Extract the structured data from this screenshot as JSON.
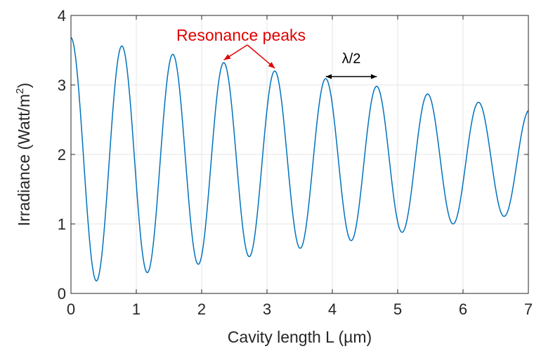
{
  "chart_data": {
    "type": "line",
    "title": "",
    "xlabel": "Cavity length L (µm)",
    "ylabel_main": "Irradiance (Watt/m",
    "ylabel_sup": "2",
    "ylabel_close": ")",
    "xlim": [
      0,
      7
    ],
    "ylim": [
      0,
      4
    ],
    "xticks": [
      0,
      1,
      2,
      3,
      4,
      5,
      6,
      7
    ],
    "yticks": [
      0,
      1,
      2,
      3,
      4
    ],
    "grid": true,
    "series": [
      {
        "color": "#0072bd",
        "model": {
          "period": 0.78,
          "peak_x": [
            0,
            0.78,
            1.56,
            2.34,
            3.12,
            3.9,
            4.68,
            5.46,
            6.24,
            7.02
          ],
          "peak_y": [
            3.68,
            3.56,
            3.44,
            3.32,
            3.2,
            3.09,
            2.98,
            2.87,
            2.75,
            2.64
          ],
          "trough_x": [
            0.39,
            1.17,
            1.95,
            2.73,
            3.51,
            4.29,
            5.07,
            5.85,
            6.63
          ],
          "trough_y": [
            0.18,
            0.3,
            0.42,
            0.53,
            0.65,
            0.76,
            0.88,
            1.0,
            1.11
          ]
        }
      }
    ],
    "annotations": {
      "resonance_label": "Resonance peaks",
      "resonance_targets": [
        [
          2.34,
          3.32
        ],
        [
          3.12,
          3.2
        ]
      ],
      "lambda_label": "λ/2",
      "lambda_arrow": {
        "x_from": 3.9,
        "x_to": 4.68,
        "y": 3.12
      }
    },
    "colors": {
      "line": "#0072bd",
      "annotation_red": "#e00000",
      "annotation_black": "#000000",
      "grid": "#e6e6e6",
      "axis": "#262626"
    }
  }
}
